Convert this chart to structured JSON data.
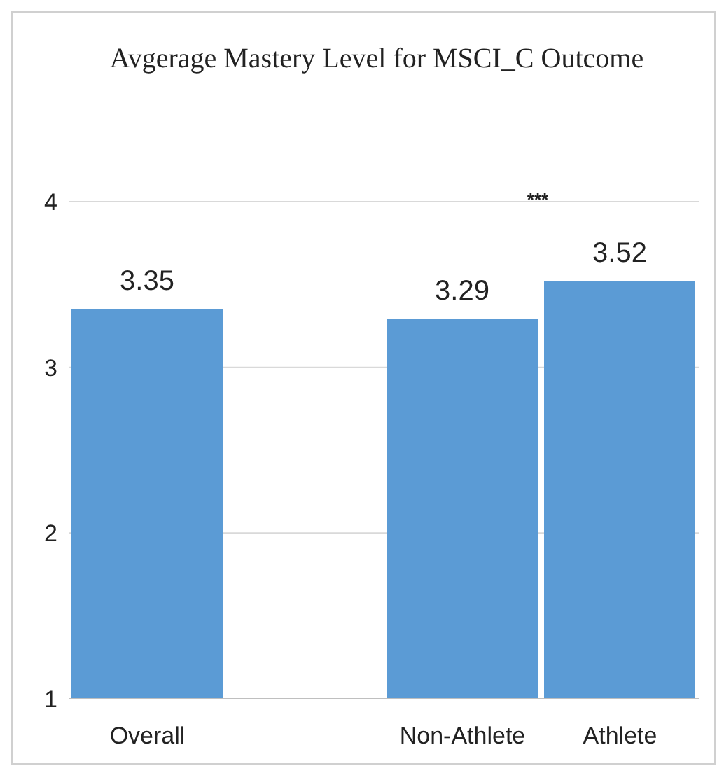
{
  "chart_data": {
    "type": "bar",
    "title": "Avgerage Mastery Level for MSCI_C Outcome",
    "categories": [
      "Overall",
      null,
      "Non-Athlete",
      "Athlete"
    ],
    "values": [
      3.35,
      null,
      3.29,
      3.52
    ],
    "color": "#5b9bd5",
    "ylim": [
      1,
      4
    ],
    "yticks": [
      1,
      2,
      3,
      4
    ],
    "grid": "y",
    "data_labels": true,
    "annotations": [
      "***"
    ]
  }
}
